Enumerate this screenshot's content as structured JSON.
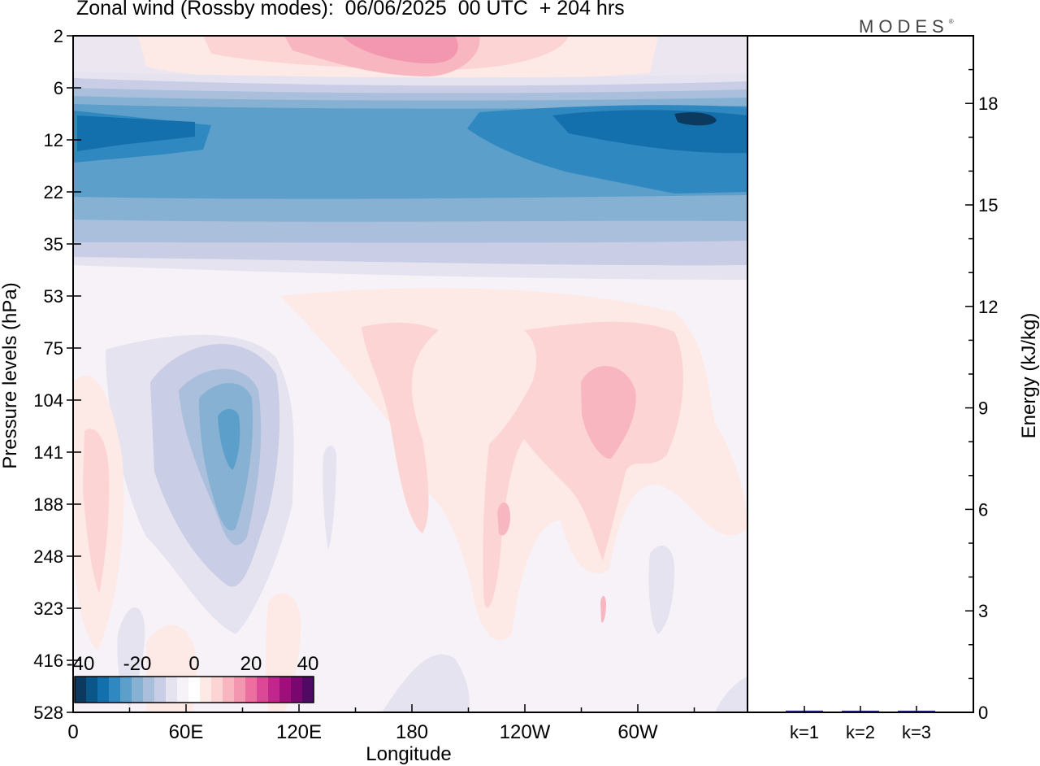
{
  "header": {
    "title": "Zonal wind (Rossby modes):  06/06/2025  00 UTC  + 204 hrs",
    "logo": "MODES",
    "logo_mark": "®"
  },
  "chart_data": [
    {
      "type": "heatmap",
      "title": "Zonal wind (Rossby modes):  06/06/2025  00 UTC  + 204 hrs",
      "xlabel": "Longitude",
      "ylabel": "Pressure levels (hPa)",
      "x_ticks": [
        "0",
        "60E",
        "120E",
        "180",
        "120W",
        "60W"
      ],
      "y_ticks": [
        "2",
        "6",
        "12",
        "22",
        "35",
        "53",
        "75",
        "104",
        "141",
        "188",
        "248",
        "323",
        "416",
        "528"
      ],
      "colorbar": {
        "ticks": [
          "-40",
          "-20",
          "0",
          "20",
          "40"
        ],
        "colors": [
          "#0b3a5e",
          "#0a5689",
          "#1470ad",
          "#2f88c0",
          "#5b9fca",
          "#86b1d3",
          "#a9bfdc",
          "#c9cde5",
          "#e5e3ef",
          "#f6f2f7",
          "#ffffff",
          "#fdeae6",
          "#fcd4d4",
          "#f8b7c0",
          "#f397b1",
          "#ec6fa0",
          "#db4896",
          "#c0268b",
          "#9e0f7c",
          "#7a0670",
          "#500a64"
        ]
      },
      "background_color": "#f6f2f7"
    },
    {
      "type": "bar",
      "categories": [
        "k=1",
        "k=2",
        "k=3"
      ],
      "values": [
        0.05,
        0.02,
        0.02
      ],
      "ylabel": "Energy (kJ/kg)",
      "y_ticks": [
        "0",
        "3",
        "6",
        "9",
        "12",
        "15",
        "18"
      ],
      "ylim": [
        0,
        20
      ],
      "bar_color": "#1a1a6e"
    }
  ]
}
